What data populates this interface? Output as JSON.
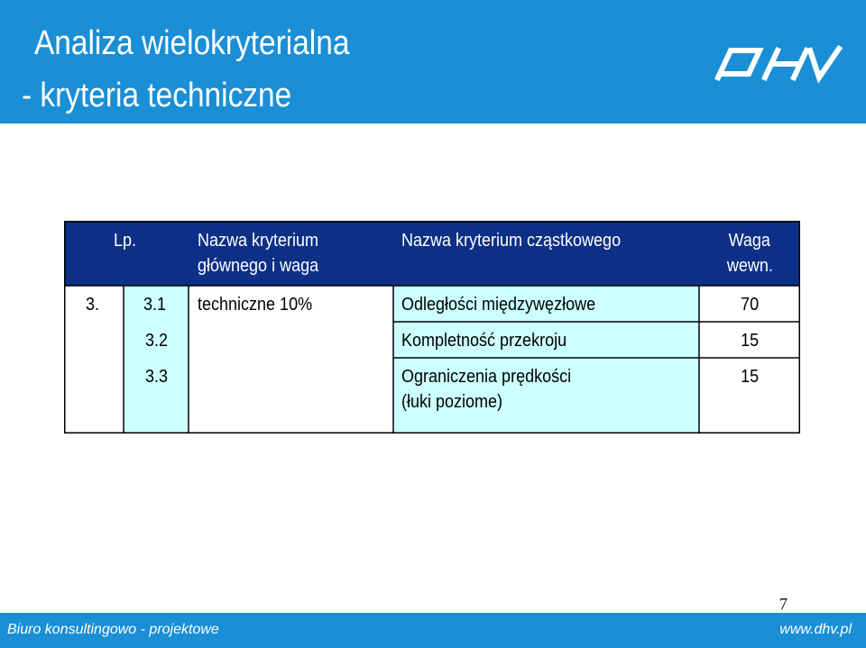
{
  "header": {
    "title_line1": "Analiza wielokryterialna",
    "title_line2": "- kryteria techniczne",
    "logo_text": "DHV"
  },
  "table": {
    "columns": {
      "lp": "Lp.",
      "main_line1": "Nazwa kryterium",
      "main_line2": "głównego i waga",
      "sub": "Nazwa kryterium cząstkowego",
      "weight_line1": "Waga",
      "weight_line2": "wewn."
    },
    "group_number": "3.",
    "group_name": "techniczne 10%",
    "rows": [
      {
        "lp": "3.1",
        "name_line1": "Odległości międzywęzłowe",
        "name_line2": "",
        "weight": "70"
      },
      {
        "lp": "3.2",
        "name_line1": "Kompletność przekroju",
        "name_line2": "",
        "weight": "15"
      },
      {
        "lp": "3.3",
        "name_line1": "Ograniczenia prędkości",
        "name_line2": "(łuki poziome)",
        "weight": "15"
      }
    ],
    "colors": {
      "header_bg": "#0d2f86",
      "header_text": "#ffffff",
      "lp_bg": "#ccffff",
      "name_bg": "#ccffff",
      "plain_bg": "#ffffff"
    }
  },
  "footer": {
    "company": "Biuro konsultingowo - projektowe",
    "website": "www.dhv.pl",
    "page_number": "7",
    "bar_color": "#1a8fd6"
  }
}
